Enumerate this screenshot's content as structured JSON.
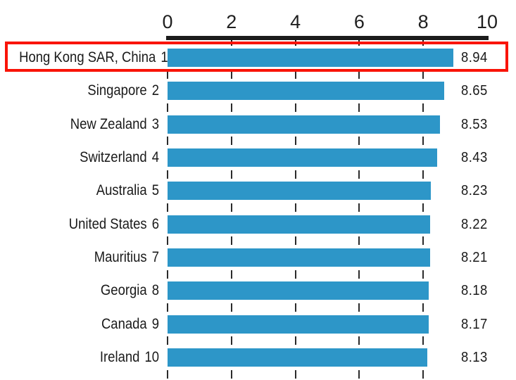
{
  "chart_data": {
    "type": "bar",
    "orientation": "horizontal",
    "title": "",
    "xlabel": "",
    "ylabel": "",
    "axis_position": "top",
    "xlim": [
      0,
      10
    ],
    "axis_ticks": [
      "0",
      "2",
      "4",
      "6",
      "8",
      "10"
    ],
    "axis_tick_values": [
      0,
      2,
      4,
      6,
      8,
      10
    ],
    "gridline_values": [
      0,
      2,
      4,
      6,
      8
    ],
    "gridline_style": "dashed",
    "legend": "none",
    "categories": [
      "Hong Kong SAR, China",
      "Singapore",
      "New Zealand",
      "Switzerland",
      "Australia",
      "United States",
      "Mauritius",
      "Georgia",
      "Canada",
      "Ireland"
    ],
    "ranks": [
      "1",
      "2",
      "3",
      "4",
      "5",
      "6",
      "7",
      "8",
      "9",
      "10"
    ],
    "values": [
      8.94,
      8.65,
      8.53,
      8.43,
      8.23,
      8.22,
      8.21,
      8.18,
      8.17,
      8.13
    ],
    "value_labels": [
      "8.94",
      "8.65",
      "8.53",
      "8.43",
      "8.23",
      "8.22",
      "8.21",
      "8.18",
      "8.17",
      "8.13"
    ],
    "colors": {
      "bar": "#2d96c8",
      "axis_bar": "#1c1c1c",
      "tick_dash": "#2b2b2b",
      "text": "#1a1a1a",
      "highlight_box": "#f91408",
      "background": "#ffffff"
    },
    "highlight": {
      "row_index": 0
    }
  }
}
